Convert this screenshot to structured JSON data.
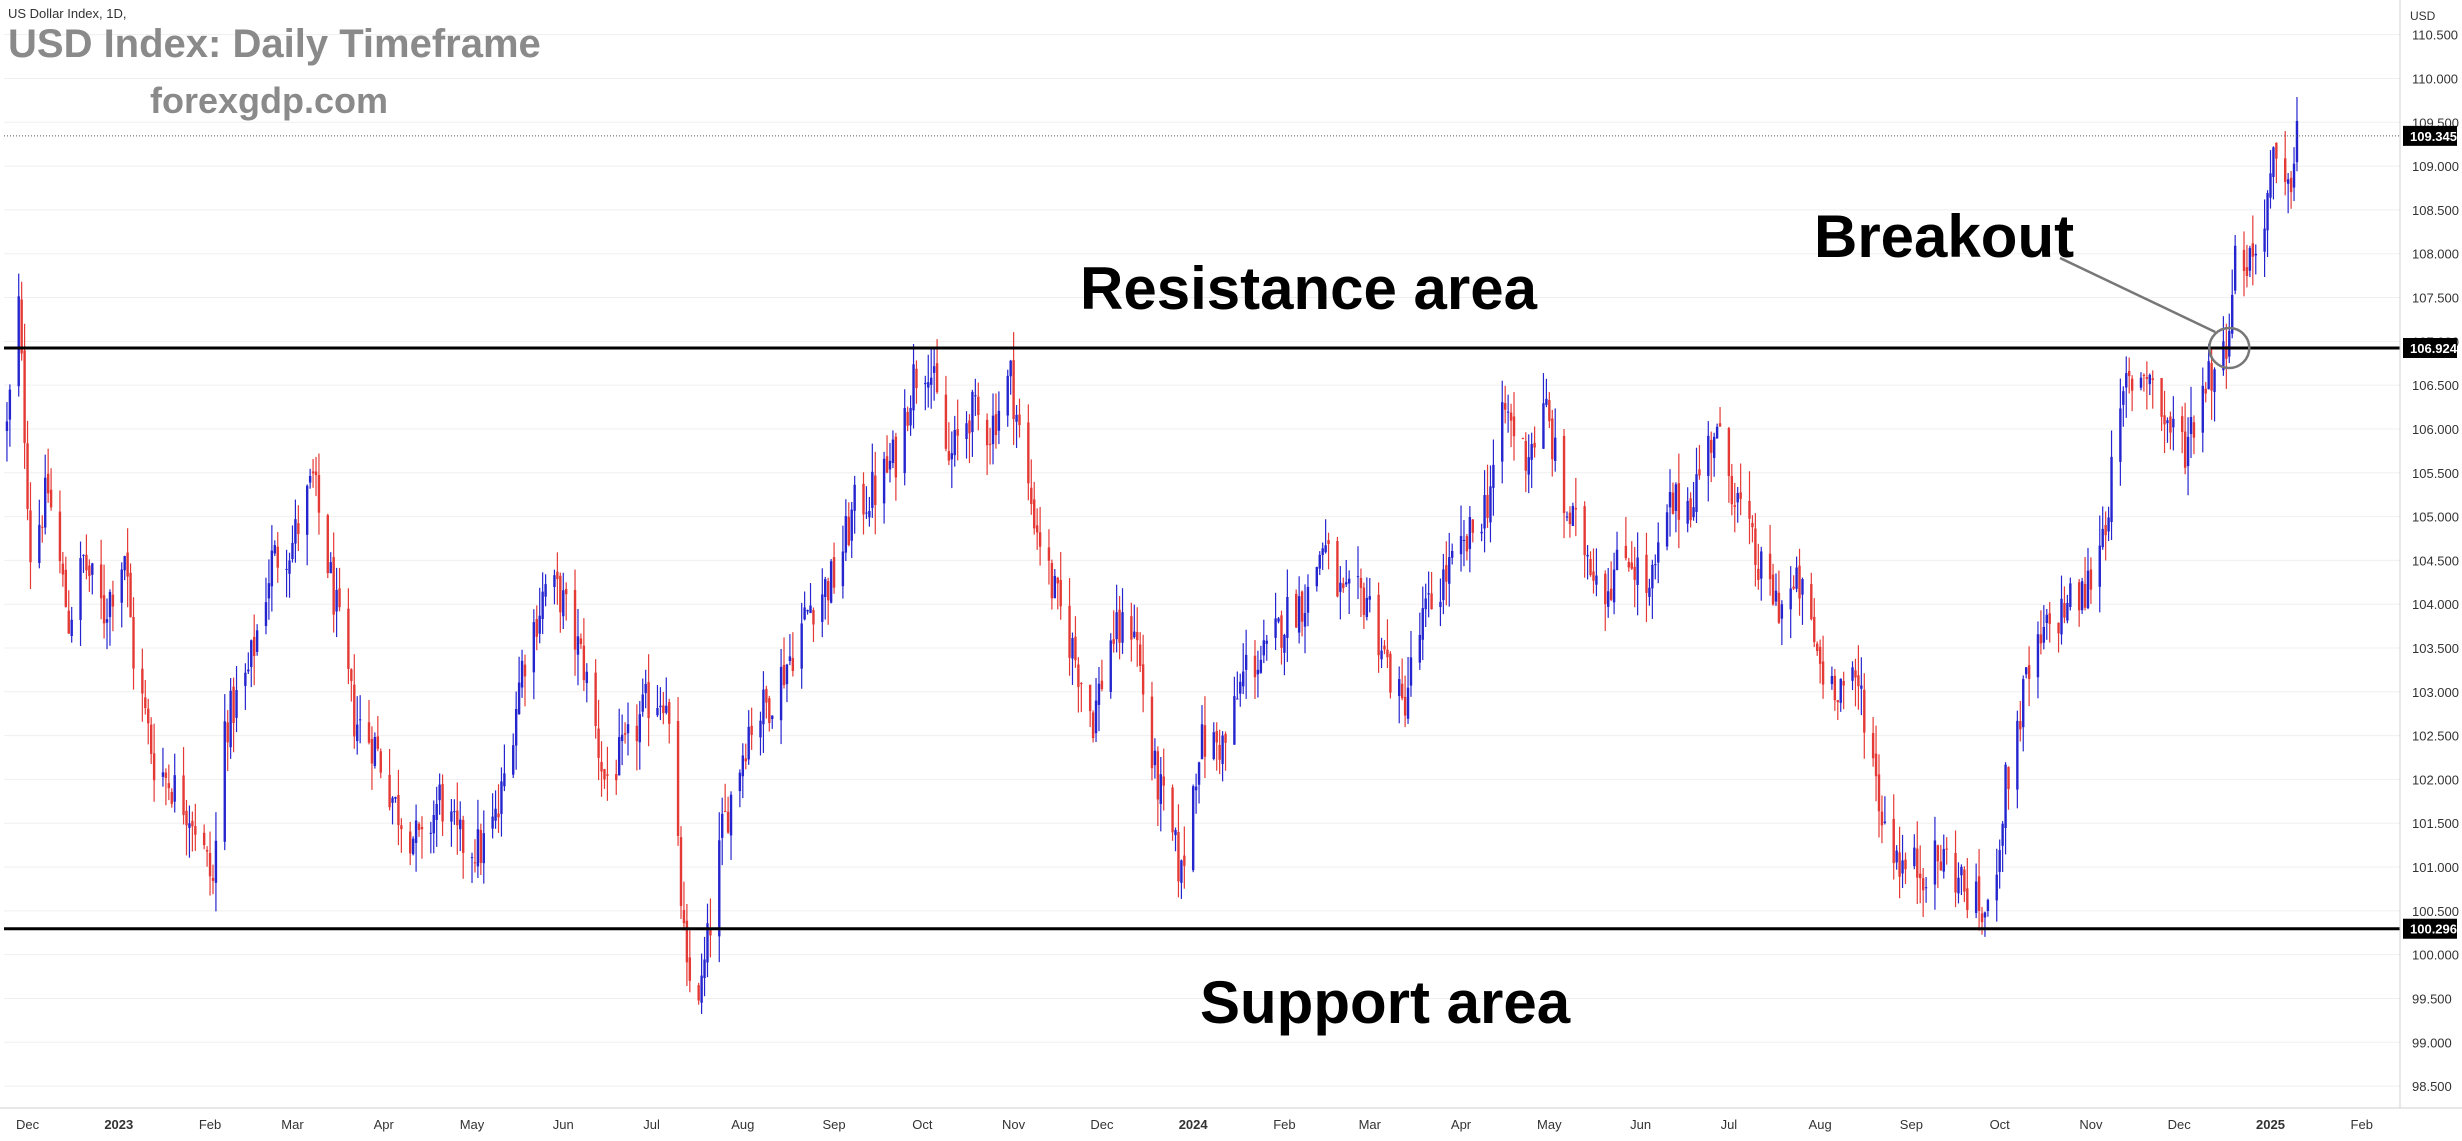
{
  "header": {
    "symbol": "US Dollar Index, 1D,",
    "title": "USD Index: Daily Timeframe",
    "subtitle": "forexgdp.com"
  },
  "annotations": {
    "resistance": "Resistance area",
    "support": "Support area",
    "breakout": "Breakout"
  },
  "colors": {
    "up": "#2525d0",
    "down": "#e53935",
    "level": "#000000",
    "grid": "#efefef",
    "axis_text": "#333333",
    "background": "#ffffff"
  },
  "chart_data": {
    "type": "candlestick",
    "title": "USD Index: Daily Timeframe",
    "currency": "USD",
    "ylim": [
      98.25,
      110.85
    ],
    "yticks": [
      98.5,
      99.0,
      99.5,
      100.0,
      100.5,
      101.0,
      101.5,
      102.0,
      102.5,
      103.0,
      103.5,
      104.0,
      104.5,
      105.0,
      105.5,
      106.0,
      106.5,
      107.0,
      107.5,
      108.0,
      108.5,
      109.0,
      109.5,
      110.0,
      110.5
    ],
    "ytick_labels": [
      "98.500",
      "99.000",
      "99.500",
      "100.000",
      "100.500",
      "101.000",
      "101.500",
      "102.000",
      "102.500",
      "103.000",
      "103.500",
      "104.000",
      "104.500",
      "105.000",
      "105.500",
      "106.000",
      "106.500",
      "107.000",
      "107.500",
      "108.000",
      "108.500",
      "109.000",
      "109.500",
      "110.000",
      "110.500"
    ],
    "x_range": [
      "2022-11-23",
      "2025-02-14"
    ],
    "xticks": [
      {
        "date": "2022-12-01",
        "label": "Dec",
        "bold": false
      },
      {
        "date": "2023-01-01",
        "label": "2023",
        "bold": true
      },
      {
        "date": "2023-02-01",
        "label": "Feb",
        "bold": false
      },
      {
        "date": "2023-03-01",
        "label": "Mar",
        "bold": false
      },
      {
        "date": "2023-04-01",
        "label": "Apr",
        "bold": false
      },
      {
        "date": "2023-05-01",
        "label": "May",
        "bold": false
      },
      {
        "date": "2023-06-01",
        "label": "Jun",
        "bold": false
      },
      {
        "date": "2023-07-01",
        "label": "Jul",
        "bold": false
      },
      {
        "date": "2023-08-01",
        "label": "Aug",
        "bold": false
      },
      {
        "date": "2023-09-01",
        "label": "Sep",
        "bold": false
      },
      {
        "date": "2023-10-01",
        "label": "Oct",
        "bold": false
      },
      {
        "date": "2023-11-01",
        "label": "Nov",
        "bold": false
      },
      {
        "date": "2023-12-01",
        "label": "Dec",
        "bold": false
      },
      {
        "date": "2024-01-01",
        "label": "2024",
        "bold": true
      },
      {
        "date": "2024-02-01",
        "label": "Feb",
        "bold": false
      },
      {
        "date": "2024-03-01",
        "label": "Mar",
        "bold": false
      },
      {
        "date": "2024-04-01",
        "label": "Apr",
        "bold": false
      },
      {
        "date": "2024-05-01",
        "label": "May",
        "bold": false
      },
      {
        "date": "2024-06-01",
        "label": "Jun",
        "bold": false
      },
      {
        "date": "2024-07-01",
        "label": "Jul",
        "bold": false
      },
      {
        "date": "2024-08-01",
        "label": "Aug",
        "bold": false
      },
      {
        "date": "2024-09-01",
        "label": "Sep",
        "bold": false
      },
      {
        "date": "2024-10-01",
        "label": "Oct",
        "bold": false
      },
      {
        "date": "2024-11-01",
        "label": "Nov",
        "bold": false
      },
      {
        "date": "2024-12-01",
        "label": "Dec",
        "bold": false
      },
      {
        "date": "2025-01-01",
        "label": "2025",
        "bold": true
      },
      {
        "date": "2025-02-01",
        "label": "Feb",
        "bold": false
      }
    ],
    "levels": [
      {
        "name": "resistance",
        "value": 106.924,
        "label": "106.924"
      },
      {
        "name": "support",
        "value": 100.296,
        "label": "100.296"
      }
    ],
    "last_price": {
      "value": 109.345,
      "label": "109.345"
    },
    "breakout_marker": {
      "date": "2024-12-18",
      "value": 106.924
    },
    "price_path": [
      [
        "2022-11-24",
        106.0
      ],
      [
        "2022-11-28",
        107.4
      ],
      [
        "2022-12-02",
        104.6
      ],
      [
        "2022-12-08",
        105.3
      ],
      [
        "2022-12-15",
        103.8
      ],
      [
        "2022-12-20",
        104.5
      ],
      [
        "2022-12-27",
        103.9
      ],
      [
        "2023-01-03",
        104.6
      ],
      [
        "2023-01-06",
        103.4
      ],
      [
        "2023-01-13",
        102.2
      ],
      [
        "2023-01-20",
        101.9
      ],
      [
        "2023-01-26",
        101.6
      ],
      [
        "2023-02-02",
        100.8
      ],
      [
        "2023-02-06",
        102.6
      ],
      [
        "2023-02-14",
        103.2
      ],
      [
        "2023-02-22",
        104.5
      ],
      [
        "2023-03-01",
        104.7
      ],
      [
        "2023-03-08",
        105.4
      ],
      [
        "2023-03-15",
        104.1
      ],
      [
        "2023-03-22",
        102.7
      ],
      [
        "2023-03-29",
        102.4
      ],
      [
        "2023-04-05",
        101.7
      ],
      [
        "2023-04-14",
        101.2
      ],
      [
        "2023-04-20",
        101.8
      ],
      [
        "2023-04-26",
        101.3
      ],
      [
        "2023-05-04",
        101.2
      ],
      [
        "2023-05-10",
        101.6
      ],
      [
        "2023-05-18",
        103.3
      ],
      [
        "2023-05-26",
        104.2
      ],
      [
        "2023-05-31",
        104.1
      ],
      [
        "2023-06-08",
        103.3
      ],
      [
        "2023-06-15",
        102.0
      ],
      [
        "2023-06-22",
        102.3
      ],
      [
        "2023-06-30",
        102.9
      ],
      [
        "2023-07-06",
        103.0
      ],
      [
        "2023-07-13",
        99.7
      ],
      [
        "2023-07-18",
        99.6
      ],
      [
        "2023-07-25",
        101.4
      ],
      [
        "2023-08-03",
        102.6
      ],
      [
        "2023-08-10",
        102.9
      ],
      [
        "2023-08-17",
        103.4
      ],
      [
        "2023-08-24",
        104.0
      ],
      [
        "2023-09-01",
        104.3
      ],
      [
        "2023-09-08",
        105.1
      ],
      [
        "2023-09-15",
        105.3
      ],
      [
        "2023-09-22",
        105.7
      ],
      [
        "2023-09-28",
        106.6
      ],
      [
        "2023-10-03",
        106.8
      ],
      [
        "2023-10-10",
        105.6
      ],
      [
        "2023-10-17",
        106.2
      ],
      [
        "2023-10-24",
        106.0
      ],
      [
        "2023-10-31",
        106.6
      ],
      [
        "2023-11-06",
        105.3
      ],
      [
        "2023-11-14",
        104.2
      ],
      [
        "2023-11-21",
        103.5
      ],
      [
        "2023-11-28",
        102.7
      ],
      [
        "2023-12-04",
        103.6
      ],
      [
        "2023-12-12",
        103.8
      ],
      [
        "2023-12-18",
        102.2
      ],
      [
        "2023-12-22",
        101.7
      ],
      [
        "2023-12-28",
        100.9
      ],
      [
        "2024-01-03",
        102.4
      ],
      [
        "2024-01-12",
        102.4
      ],
      [
        "2024-01-19",
        103.3
      ],
      [
        "2024-01-26",
        103.4
      ],
      [
        "2024-02-02",
        103.9
      ],
      [
        "2024-02-09",
        104.1
      ],
      [
        "2024-02-14",
        104.7
      ],
      [
        "2024-02-21",
        104.0
      ],
      [
        "2024-02-29",
        104.1
      ],
      [
        "2024-03-07",
        103.3
      ],
      [
        "2024-03-12",
        102.8
      ],
      [
        "2024-03-19",
        103.8
      ],
      [
        "2024-03-26",
        104.3
      ],
      [
        "2024-04-02",
        104.6
      ],
      [
        "2024-04-10",
        105.2
      ],
      [
        "2024-04-16",
        106.2
      ],
      [
        "2024-04-23",
        105.7
      ],
      [
        "2024-04-30",
        106.2
      ],
      [
        "2024-05-06",
        105.1
      ],
      [
        "2024-05-14",
        104.6
      ],
      [
        "2024-05-20",
        104.2
      ],
      [
        "2024-05-28",
        104.6
      ],
      [
        "2024-06-04",
        104.1
      ],
      [
        "2024-06-11",
        105.1
      ],
      [
        "2024-06-18",
        105.2
      ],
      [
        "2024-06-26",
        106.0
      ],
      [
        "2024-07-03",
        105.3
      ],
      [
        "2024-07-11",
        104.4
      ],
      [
        "2024-07-18",
        104.0
      ],
      [
        "2024-07-25",
        104.2
      ],
      [
        "2024-08-02",
        103.2
      ],
      [
        "2024-08-08",
        103.1
      ],
      [
        "2024-08-15",
        103.0
      ],
      [
        "2024-08-22",
        101.6
      ],
      [
        "2024-08-29",
        101.0
      ],
      [
        "2024-09-06",
        101.0
      ],
      [
        "2024-09-13",
        101.1
      ],
      [
        "2024-09-20",
        100.7
      ],
      [
        "2024-09-27",
        100.4
      ],
      [
        "2024-10-03",
        101.9
      ],
      [
        "2024-10-10",
        103.1
      ],
      [
        "2024-10-17",
        103.7
      ],
      [
        "2024-10-24",
        104.0
      ],
      [
        "2024-10-30",
        104.1
      ],
      [
        "2024-11-06",
        105.0
      ],
      [
        "2024-11-13",
        106.5
      ],
      [
        "2024-11-20",
        106.7
      ],
      [
        "2024-11-26",
        106.1
      ],
      [
        "2024-12-03",
        105.8
      ],
      [
        "2024-12-10",
        106.6
      ],
      [
        "2024-12-16",
        106.8
      ],
      [
        "2024-12-20",
        107.9
      ],
      [
        "2024-12-27",
        108.0
      ],
      [
        "2025-01-02",
        109.0
      ],
      [
        "2025-01-07",
        108.6
      ],
      [
        "2025-01-10",
        109.5
      ]
    ]
  }
}
